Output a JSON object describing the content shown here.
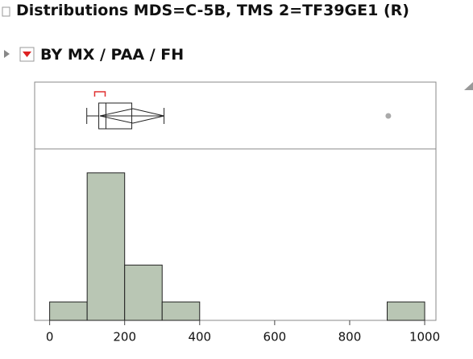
{
  "header": {
    "title": "Distributions MDS=C-5B, TMS 2=TF39GE1 (R)",
    "group": "BY MX / PAA / FH"
  },
  "chart_data": {
    "type": "histogram",
    "bins": [
      0,
      100,
      200,
      300,
      400,
      500,
      600,
      700,
      800,
      900,
      1000
    ],
    "counts": [
      1,
      8,
      3,
      1,
      0,
      0,
      0,
      0,
      0,
      1
    ],
    "color": "#b9c6b4",
    "xlim": [
      -40,
      1030
    ],
    "ylim": [
      0,
      9.3
    ],
    "xticks": [
      0,
      200,
      400,
      600,
      800,
      1000
    ],
    "box": {
      "min": 99,
      "q1": 131,
      "median": 150,
      "q3": 219,
      "max": 305,
      "mean": 222,
      "mean_ci": [
        134,
        305
      ],
      "outliers": [
        903
      ],
      "shortest_half": [
        120,
        148
      ],
      "outlier_color": "#aaaaaa",
      "shortest_half_color": "#e03030"
    }
  }
}
